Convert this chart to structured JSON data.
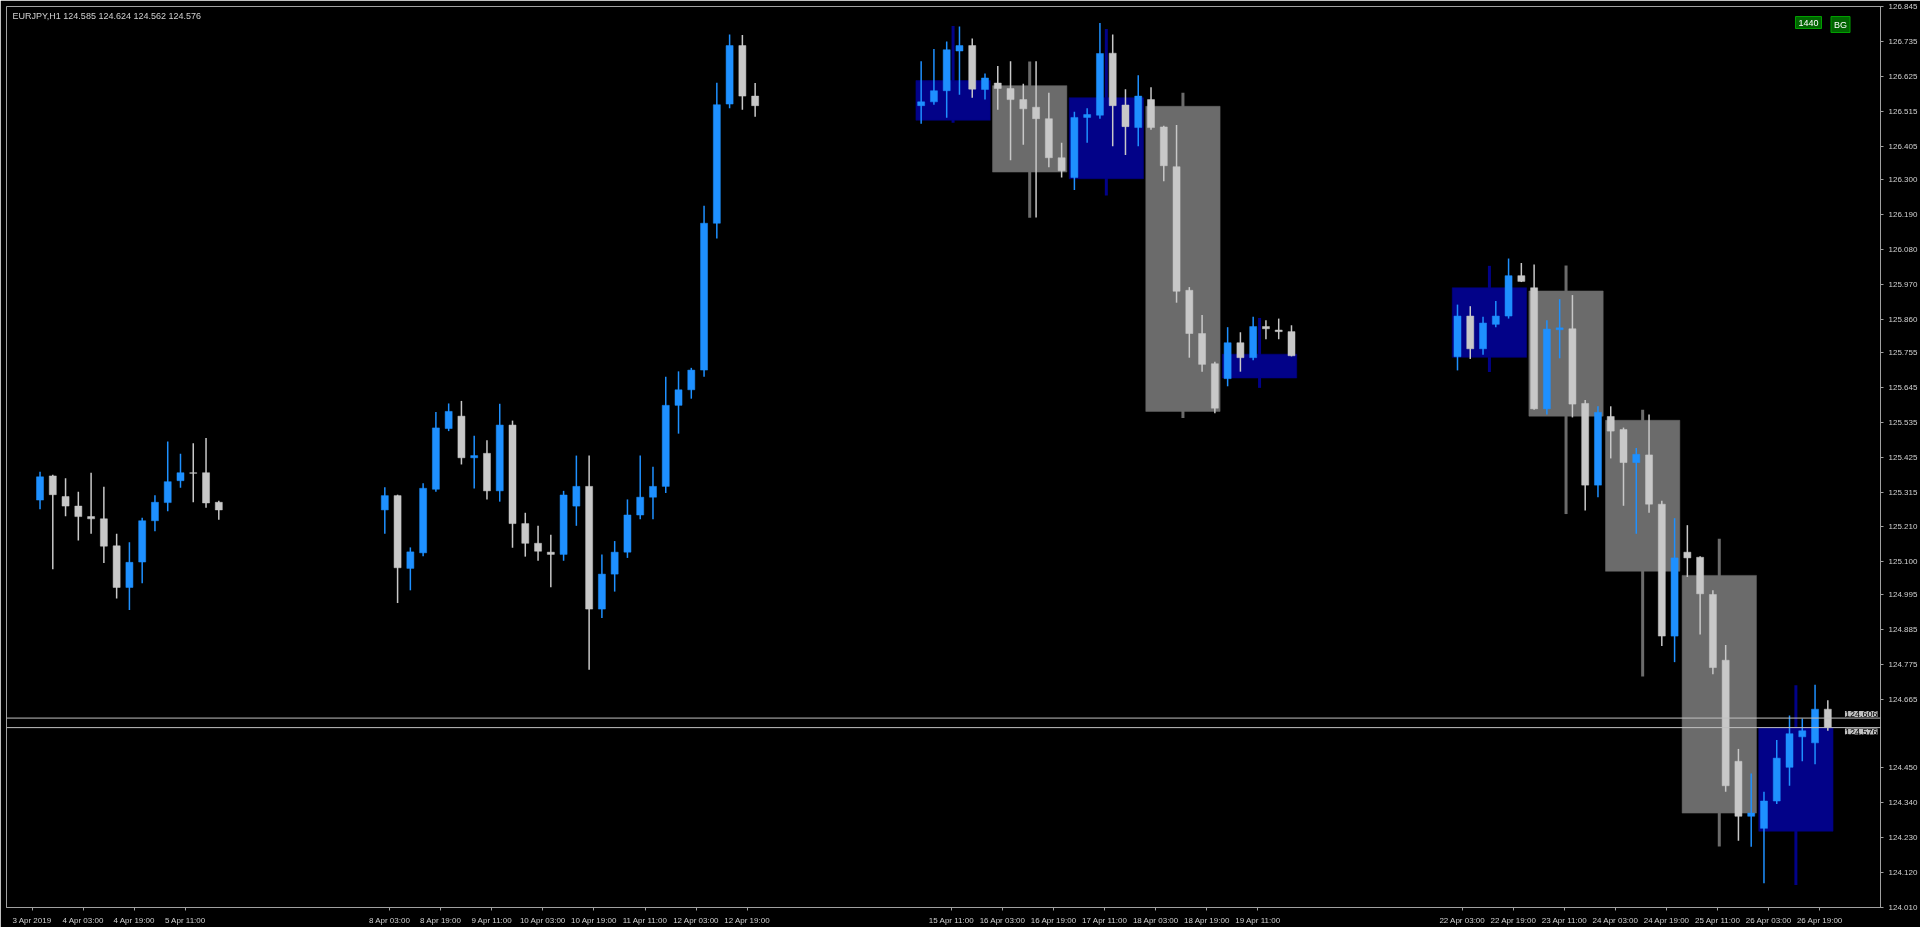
{
  "chart_data": {
    "type": "candlestick",
    "title": "EURJPY,H1  124.585 124.624 124.562 124.576",
    "annotations": [
      "1440",
      "BG"
    ],
    "xlim": [
      "2019-04-03T03:00",
      "2019-04-27T14:00"
    ],
    "xticks": [
      {
        "value": "2019-04-03T11:00",
        "label": "3 Apr 2019"
      },
      {
        "value": "2019-04-04T03:00",
        "label": "4 Apr 03:00"
      },
      {
        "value": "2019-04-04T19:00",
        "label": "4 Apr 19:00"
      },
      {
        "value": "2019-04-05T11:00",
        "label": "5 Apr 11:00"
      },
      {
        "value": "2019-04-08T03:00",
        "label": "8 Apr 03:00"
      },
      {
        "value": "2019-04-08T19:00",
        "label": "8 Apr 19:00"
      },
      {
        "value": "2019-04-09T11:00",
        "label": "9 Apr 11:00"
      },
      {
        "value": "2019-04-10T03:00",
        "label": "10 Apr 03:00"
      },
      {
        "value": "2019-04-10T19:00",
        "label": "10 Apr 19:00"
      },
      {
        "value": "2019-04-11T11:00",
        "label": "11 Apr 11:00"
      },
      {
        "value": "2019-04-12T03:00",
        "label": "12 Apr 03:00"
      },
      {
        "value": "2019-04-12T19:00",
        "label": "12 Apr 19:00"
      },
      {
        "value": "2019-04-15T11:00",
        "label": "15 Apr 11:00"
      },
      {
        "value": "2019-04-16T03:00",
        "label": "16 Apr 03:00"
      },
      {
        "value": "2019-04-16T19:00",
        "label": "16 Apr 19:00"
      },
      {
        "value": "2019-04-17T11:00",
        "label": "17 Apr 11:00"
      },
      {
        "value": "2019-04-18T03:00",
        "label": "18 Apr 03:00"
      },
      {
        "value": "2019-04-18T19:00",
        "label": "18 Apr 19:00"
      },
      {
        "value": "2019-04-19T11:00",
        "label": "19 Apr 11:00"
      },
      {
        "value": "2019-04-22T03:00",
        "label": "22 Apr 03:00"
      },
      {
        "value": "2019-04-22T19:00",
        "label": "22 Apr 19:00"
      },
      {
        "value": "2019-04-23T11:00",
        "label": "23 Apr 11:00"
      },
      {
        "value": "2019-04-24T03:00",
        "label": "24 Apr 03:00"
      },
      {
        "value": "2019-04-24T19:00",
        "label": "24 Apr 19:00"
      },
      {
        "value": "2019-04-25T11:00",
        "label": "25 Apr 11:00"
      },
      {
        "value": "2019-04-26T03:00",
        "label": "26 Apr 03:00"
      },
      {
        "value": "2019-04-26T19:00",
        "label": "26 Apr 19:00"
      }
    ],
    "ylim": [
      124.01,
      126.845
    ],
    "yticks": [
      126.845,
      126.735,
      126.625,
      126.515,
      126.405,
      {
        "value": 126.3,
        "label": "126.300"
      },
      {
        "value": 126.19,
        "label": "126.190"
      },
      {
        "value": 126.08,
        "label": "126.080"
      },
      {
        "value": 125.97,
        "label": "125.970"
      },
      {
        "value": 125.86,
        "label": "125.860"
      },
      125.755,
      125.645,
      125.535,
      125.425,
      125.315,
      {
        "value": 125.21,
        "label": "125.210"
      },
      {
        "value": 125.1,
        "label": "125.100"
      },
      124.995,
      124.885,
      124.775,
      124.665,
      {
        "value": 124.45,
        "label": "124.450"
      },
      {
        "value": 124.34,
        "label": "124.340"
      },
      {
        "value": 124.23,
        "label": "124.230"
      },
      {
        "value": 124.12,
        "label": "124.120"
      },
      {
        "value": 124.01,
        "label": "124.010"
      }
    ],
    "ref_lines": [
      {
        "axis": "y",
        "value": 124.606,
        "label": "124.606",
        "color": "#c0c0c0"
      },
      {
        "axis": "y",
        "value": 124.576,
        "label": "124.576",
        "color": "#c0c0c0"
      }
    ],
    "series": [
      {
        "x": [
          "2019-04-15T11:30",
          "2019-04-16T11:30",
          "2019-04-17T11:30",
          "2019-04-18T11:30",
          "2019-04-19T11:30",
          "2019-04-22T11:30",
          "2019-04-23T11:30",
          "2019-04-24T11:30",
          "2019-04-25T11:30",
          "2019-04-26T11:30"
        ],
        "ohlc": [
          [
            126.487,
            126.784,
            126.479,
            126.612
          ],
          [
            126.596,
            126.672,
            126.18,
            126.324
          ],
          [
            126.303,
            126.774,
            126.25,
            126.558
          ],
          [
            126.531,
            126.574,
            125.55,
            125.571
          ],
          [
            125.676,
            125.865,
            125.645,
            125.751
          ],
          [
            125.741,
            126.029,
            125.695,
            125.96
          ],
          [
            125.95,
            126.03,
            125.248,
            125.556
          ],
          [
            125.543,
            125.576,
            124.737,
            125.068
          ],
          [
            125.055,
            125.17,
            124.202,
            124.307
          ],
          [
            124.25,
            124.709,
            124.081,
            124.576
          ]
        ],
        "colors": [
          "#020288",
          "#6b6b6b",
          "#020288",
          "#6b6b6b",
          "#020288",
          "#020288",
          "#6b6b6b",
          "#6b6b6b",
          "#6b6b6b",
          "#020288"
        ]
      },
      {
        "x": [
          "2019-04-03T13:30",
          "2019-04-03T17:30",
          "2019-04-03T21:30",
          "2019-04-04T01:30",
          "2019-04-04T05:30",
          "2019-04-04T09:30",
          "2019-04-04T13:30",
          "2019-04-04T17:30",
          "2019-04-04T21:30",
          "2019-04-05T01:30",
          "2019-04-05T05:30",
          "2019-04-05T09:30",
          "2019-04-05T13:30",
          "2019-04-05T17:30",
          "2019-04-05T21:30",
          "2019-04-08T01:30",
          "2019-04-08T05:30",
          "2019-04-08T09:30",
          "2019-04-08T13:30",
          "2019-04-08T17:30",
          "2019-04-08T21:30",
          "2019-04-09T01:30",
          "2019-04-09T05:30",
          "2019-04-09T09:30",
          "2019-04-09T13:30",
          "2019-04-09T17:30",
          "2019-04-09T21:30",
          "2019-04-10T01:30",
          "2019-04-10T05:30",
          "2019-04-10T09:30",
          "2019-04-10T13:30",
          "2019-04-10T17:30",
          "2019-04-10T21:30",
          "2019-04-11T01:30",
          "2019-04-11T05:30",
          "2019-04-11T09:30",
          "2019-04-11T13:30",
          "2019-04-11T17:30",
          "2019-04-11T21:30",
          "2019-04-12T01:30",
          "2019-04-12T05:30",
          "2019-04-12T09:30",
          "2019-04-12T13:30",
          "2019-04-12T17:30",
          "2019-04-12T21:30",
          "2019-04-15T01:30",
          "2019-04-15T05:30",
          "2019-04-15T09:30",
          "2019-04-15T13:30",
          "2019-04-15T17:30",
          "2019-04-15T21:30",
          "2019-04-16T01:30",
          "2019-04-16T05:30",
          "2019-04-16T09:30",
          "2019-04-16T13:30",
          "2019-04-16T17:30",
          "2019-04-16T21:30",
          "2019-04-17T01:30",
          "2019-04-17T05:30",
          "2019-04-17T09:30",
          "2019-04-17T13:30",
          "2019-04-17T17:30",
          "2019-04-17T21:30",
          "2019-04-18T01:30",
          "2019-04-18T05:30",
          "2019-04-18T09:30",
          "2019-04-18T13:30",
          "2019-04-18T17:30",
          "2019-04-18T21:30",
          "2019-04-19T01:30",
          "2019-04-19T05:30",
          "2019-04-19T09:30",
          "2019-04-19T13:30",
          "2019-04-19T17:30",
          "2019-04-19T21:30",
          "2019-04-22T01:30",
          "2019-04-22T05:30",
          "2019-04-22T09:30",
          "2019-04-22T13:30",
          "2019-04-22T17:30",
          "2019-04-22T21:30",
          "2019-04-23T01:30",
          "2019-04-23T05:30",
          "2019-04-23T09:30",
          "2019-04-23T13:30",
          "2019-04-23T17:30",
          "2019-04-23T21:30",
          "2019-04-24T01:30",
          "2019-04-24T05:30",
          "2019-04-24T09:30",
          "2019-04-24T13:30",
          "2019-04-24T17:30",
          "2019-04-24T21:30",
          "2019-04-25T01:30",
          "2019-04-25T05:30",
          "2019-04-25T09:30",
          "2019-04-25T13:30",
          "2019-04-25T17:30",
          "2019-04-25T21:30",
          "2019-04-26T01:30",
          "2019-04-26T05:30",
          "2019-04-26T09:30",
          "2019-04-26T13:30",
          "2019-04-26T17:30",
          "2019-04-26T21:30"
        ],
        "ohlc": [
          [
            125.292,
            125.381,
            125.263,
            125.365
          ],
          [
            125.368,
            125.372,
            125.074,
            125.309
          ],
          [
            125.303,
            125.361,
            125.241,
            125.273
          ],
          [
            125.273,
            125.318,
            125.165,
            125.24
          ],
          [
            125.24,
            125.378,
            125.186,
            125.233
          ],
          [
            125.233,
            125.334,
            125.094,
            125.147
          ],
          [
            125.148,
            125.186,
            124.982,
            125.017
          ],
          [
            125.017,
            125.159,
            124.946,
            125.096
          ],
          [
            125.097,
            125.236,
            125.03,
            125.227
          ],
          [
            125.227,
            125.307,
            125.194,
            125.285
          ],
          [
            125.284,
            125.476,
            125.257,
            125.35
          ],
          [
            125.353,
            125.438,
            125.331,
            125.378
          ],
          [
            125.378,
            125.471,
            125.285,
            125.376
          ],
          [
            125.378,
            125.487,
            125.268,
            125.283
          ],
          [
            125.285,
            125.29,
            125.23,
            125.261
          ],
          [
            125.261,
            125.332,
            125.186,
            125.306
          ],
          [
            125.306,
            125.309,
            124.968,
            125.079
          ],
          [
            125.077,
            125.143,
            125.008,
            125.129
          ],
          [
            125.126,
            125.345,
            125.115,
            125.329
          ],
          [
            125.326,
            125.569,
            125.318,
            125.519
          ],
          [
            125.517,
            125.596,
            125.509,
            125.571
          ],
          [
            125.556,
            125.604,
            125.404,
            125.425
          ],
          [
            125.425,
            125.494,
            125.328,
            125.432
          ],
          [
            125.439,
            125.48,
            125.294,
            125.321
          ],
          [
            125.321,
            125.595,
            125.287,
            125.528
          ],
          [
            125.528,
            125.542,
            125.142,
            125.218
          ],
          [
            125.218,
            125.252,
            125.114,
            125.156
          ],
          [
            125.156,
            125.211,
            125.101,
            125.131
          ],
          [
            125.128,
            125.183,
            125.018,
            125.121
          ],
          [
            125.121,
            125.321,
            125.101,
            125.308
          ],
          [
            125.273,
            125.432,
            125.211,
            125.335
          ],
          [
            125.335,
            125.432,
            124.758,
            124.949
          ],
          [
            124.949,
            125.121,
            124.921,
            125.059
          ],
          [
            125.059,
            125.163,
            125.004,
            125.128
          ],
          [
            125.128,
            125.294,
            125.11,
            125.245
          ],
          [
            125.245,
            125.432,
            125.232,
            125.301
          ],
          [
            125.301,
            125.397,
            125.232,
            125.335
          ],
          [
            125.335,
            125.68,
            125.314,
            125.59
          ],
          [
            125.59,
            125.697,
            125.501,
            125.639
          ],
          [
            125.639,
            125.708,
            125.611,
            125.701
          ],
          [
            125.701,
            126.218,
            125.68,
            126.163
          ],
          [
            126.163,
            126.605,
            126.115,
            126.536
          ],
          [
            126.538,
            126.757,
            126.525,
            126.722
          ],
          [
            126.722,
            126.755,
            126.52,
            126.563
          ],
          [
            126.563,
            126.604,
            126.498,
            126.533
          ],
          [
            126.533,
            126.673,
            126.476,
            126.545
          ],
          [
            126.545,
            126.711,
            126.536,
            126.58
          ],
          [
            126.58,
            126.735,
            126.495,
            126.709
          ],
          [
            126.705,
            126.782,
            126.567,
            126.722
          ],
          [
            126.722,
            126.744,
            126.558,
            126.585
          ],
          [
            126.584,
            126.634,
            126.552,
            126.62
          ],
          [
            126.604,
            126.658,
            126.52,
            126.587
          ],
          [
            126.587,
            126.673,
            126.361,
            126.552
          ],
          [
            126.552,
            126.602,
            126.41,
            126.523
          ],
          [
            126.528,
            126.673,
            126.181,
            126.492
          ],
          [
            126.492,
            126.574,
            126.339,
            126.369
          ],
          [
            126.369,
            126.416,
            126.307,
            126.328
          ],
          [
            126.307,
            126.514,
            126.268,
            126.496
          ],
          [
            126.496,
            126.525,
            126.416,
            126.505
          ],
          [
            126.503,
            126.793,
            126.492,
            126.697
          ],
          [
            126.698,
            126.757,
            126.405,
            126.533
          ],
          [
            126.535,
            126.585,
            126.378,
            126.467
          ],
          [
            126.464,
            126.629,
            126.405,
            126.563
          ],
          [
            126.552,
            126.591,
            126.457,
            126.464
          ],
          [
            126.466,
            126.47,
            126.295,
            126.344
          ],
          [
            126.341,
            126.472,
            125.913,
            125.949
          ],
          [
            125.952,
            125.962,
            125.74,
            125.816
          ],
          [
            125.816,
            125.874,
            125.696,
            125.719
          ],
          [
            125.721,
            125.727,
            125.565,
            125.581
          ],
          [
            125.674,
            125.836,
            125.65,
            125.787
          ],
          [
            125.787,
            125.82,
            125.696,
            125.74
          ],
          [
            125.74,
            125.869,
            125.732,
            125.838
          ],
          [
            125.838,
            125.858,
            125.798,
            125.831
          ],
          [
            125.827,
            125.863,
            125.798,
            125.822
          ],
          [
            125.822,
            125.842,
            125.744,
            125.746
          ],
          [
            125.743,
            125.907,
            125.7,
            125.871
          ],
          [
            125.871,
            125.902,
            125.736,
            125.768
          ],
          [
            125.768,
            125.869,
            125.749,
            125.849
          ],
          [
            125.845,
            125.918,
            125.836,
            125.871
          ],
          [
            125.871,
            126.052,
            125.863,
            125.998
          ],
          [
            125.998,
            126.038,
            125.978,
            125.98
          ],
          [
            125.96,
            126.033,
            125.576,
            125.579
          ],
          [
            125.579,
            125.858,
            125.561,
            125.83
          ],
          [
            125.828,
            125.924,
            125.738,
            125.834
          ],
          [
            125.831,
            125.937,
            125.552,
            125.594
          ],
          [
            125.596,
            125.607,
            125.259,
            125.339
          ],
          [
            125.339,
            125.587,
            125.301,
            125.568
          ],
          [
            125.555,
            125.587,
            125.423,
            125.509
          ],
          [
            125.514,
            125.52,
            125.274,
            125.41
          ],
          [
            125.41,
            125.456,
            125.186,
            125.436
          ],
          [
            125.434,
            125.561,
            125.252,
            125.279
          ],
          [
            125.279,
            125.29,
            124.833,
            124.864
          ],
          [
            124.864,
            125.235,
            124.782,
            125.11
          ],
          [
            125.128,
            125.213,
            125.05,
            125.11
          ],
          [
            125.112,
            125.115,
            124.869,
            124.997
          ],
          [
            124.995,
            125.008,
            124.744,
            124.765
          ],
          [
            124.788,
            124.836,
            124.374,
            124.393
          ],
          [
            124.47,
            124.509,
            124.22,
            124.297
          ],
          [
            124.297,
            124.432,
            124.201,
            124.307
          ],
          [
            124.259,
            124.374,
            124.086,
            124.345
          ],
          [
            124.345,
            124.537,
            124.336,
            124.48
          ],
          [
            124.451,
            124.614,
            124.393,
            124.557
          ],
          [
            124.547,
            124.605,
            124.47,
            124.566
          ],
          [
            124.528,
            124.711,
            124.461,
            124.634
          ],
          [
            124.634,
            124.662,
            124.566,
            124.576
          ]
        ],
        "colors": [
          "#1e90ff",
          "#c8c8c8",
          "#c8c8c8",
          "#c8c8c8",
          "#c8c8c8",
          "#c8c8c8",
          "#c8c8c8",
          "#1e90ff",
          "#1e90ff",
          "#1e90ff",
          "#1e90ff",
          "#1e90ff",
          "#c8c8c8",
          "#c8c8c8",
          "#c8c8c8",
          "#1e90ff",
          "#c8c8c8",
          "#1e90ff",
          "#1e90ff",
          "#1e90ff",
          "#1e90ff",
          "#c8c8c8",
          "#1e90ff",
          "#c8c8c8",
          "#1e90ff",
          "#c8c8c8",
          "#c8c8c8",
          "#c8c8c8",
          "#c8c8c8",
          "#1e90ff",
          "#1e90ff",
          "#c8c8c8",
          "#1e90ff",
          "#1e90ff",
          "#1e90ff",
          "#1e90ff",
          "#1e90ff",
          "#1e90ff",
          "#1e90ff",
          "#1e90ff",
          "#1e90ff",
          "#1e90ff",
          "#1e90ff",
          "#c8c8c8",
          "#c8c8c8",
          "#1e90ff",
          "#1e90ff",
          "#1e90ff",
          "#1e90ff",
          "#c8c8c8",
          "#1e90ff",
          "#c8c8c8",
          "#c8c8c8",
          "#c8c8c8",
          "#c8c8c8",
          "#c8c8c8",
          "#c8c8c8",
          "#1e90ff",
          "#1e90ff",
          "#1e90ff",
          "#c8c8c8",
          "#c8c8c8",
          "#1e90ff",
          "#c8c8c8",
          "#c8c8c8",
          "#c8c8c8",
          "#c8c8c8",
          "#c8c8c8",
          "#c8c8c8",
          "#1e90ff",
          "#c8c8c8",
          "#1e90ff",
          "#c8c8c8",
          "#c8c8c8",
          "#c8c8c8",
          "#1e90ff",
          "#c8c8c8",
          "#1e90ff",
          "#1e90ff",
          "#1e90ff",
          "#c8c8c8",
          "#c8c8c8",
          "#1e90ff",
          "#1e90ff",
          "#c8c8c8",
          "#c8c8c8",
          "#1e90ff",
          "#c8c8c8",
          "#c8c8c8",
          "#1e90ff",
          "#c8c8c8",
          "#c8c8c8",
          "#1e90ff",
          "#c8c8c8",
          "#c8c8c8",
          "#c8c8c8",
          "#c8c8c8",
          "#c8c8c8",
          "#1e90ff",
          "#1e90ff",
          "#1e90ff",
          "#1e90ff",
          "#1e90ff",
          "#1e90ff",
          "#c8c8c8"
        ]
      }
    ]
  }
}
